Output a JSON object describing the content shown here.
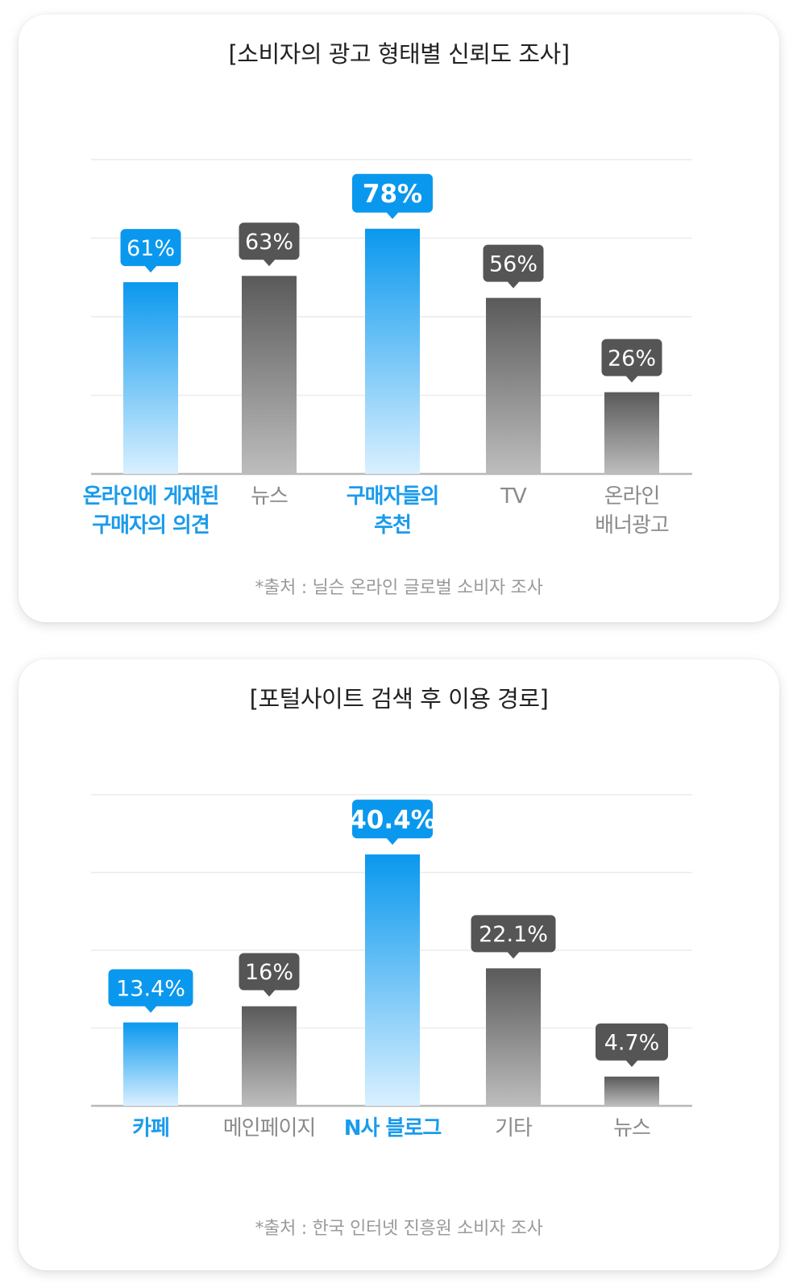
{
  "chart_data": [
    {
      "type": "bar",
      "title": "[소비자의 광고 형태별 신뢰도 조사]",
      "categories": [
        "온라인에 게재된\n구매자의 의견",
        "뉴스",
        "구매자들의\n추천",
        "TV",
        "온라인\n배너광고"
      ],
      "values": [
        61,
        63,
        78,
        56,
        26
      ],
      "value_labels": [
        "61%",
        "63%",
        "78%",
        "56%",
        "26%"
      ],
      "highlight": [
        true,
        false,
        true,
        false,
        false
      ],
      "emphasis_index": 2,
      "ylim": [
        0,
        100
      ],
      "grid": true,
      "source": "*출처 : 닐슨 온라인 글로벌 소비자 조사"
    },
    {
      "type": "bar",
      "title": "[포털사이트 검색 후 이용 경로]",
      "categories": [
        "카페",
        "메인페이지",
        "N사 블로그",
        "기타",
        "뉴스"
      ],
      "values": [
        13.4,
        16,
        40.4,
        22.1,
        4.7
      ],
      "value_labels": [
        "13.4%",
        "16%",
        "40.4%",
        "22.1%",
        "4.7%"
      ],
      "highlight": [
        true,
        false,
        true,
        false,
        false
      ],
      "emphasis_index": 2,
      "ylim": [
        0,
        50
      ],
      "grid": true,
      "source": "*출처 : 한국 인터넷 진흥원 소비자 조사"
    }
  ],
  "colors": {
    "blue_top": "#0a98ee",
    "blue_bottom": "#d9f0ff",
    "gray_top": "#5a5a5a",
    "gray_bottom": "#bdbdbd",
    "callout_blue": "#0a98ee",
    "callout_gray": "#555555",
    "label_blue": "#1a9bec",
    "label_gray": "#8a8a8a",
    "axis": "#b8b8b8",
    "grid": "#ececec"
  }
}
